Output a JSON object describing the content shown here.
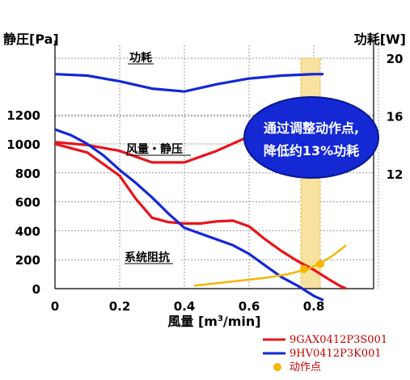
{
  "chart_data": {
    "type": "line",
    "xlabel_prefix": "風量 [m",
    "xlabel_sup": "3",
    "xlabel_suffix": "/min]",
    "ylabel_left": "静圧[Pa]",
    "ylabel_right": "功耗[W]",
    "xlim": [
      0,
      1.0
    ],
    "ylim_left": [
      0,
      1600
    ],
    "ylim_right": [
      0,
      20
    ],
    "x_ticks": [
      "0",
      "0.2",
      "0.4",
      "0.6",
      "0.8"
    ],
    "x_tick_values": [
      0,
      0.2,
      0.4,
      0.6,
      0.8
    ],
    "y_left_ticks": [
      "0",
      "200",
      "400",
      "600",
      "800",
      "1000",
      "1200"
    ],
    "y_left_tick_values": [
      0,
      200,
      400,
      600,
      800,
      1000,
      1200
    ],
    "y_right_ticks": [
      "12",
      "16",
      "20"
    ],
    "y_right_tick_values": [
      12,
      16,
      20
    ],
    "grid": true,
    "operating_band": [
      0.76,
      0.82
    ],
    "series": [
      {
        "name": "9GAX0412P3S001",
        "color": "#e8141b",
        "pressure": {
          "x": [
            0,
            0.1,
            0.2,
            0.25,
            0.3,
            0.35,
            0.4,
            0.45,
            0.5,
            0.55,
            0.6,
            0.65,
            0.7,
            0.75,
            0.8,
            0.85,
            0.88,
            0.9
          ],
          "y": [
            1000,
            940,
            780,
            620,
            490,
            460,
            450,
            450,
            465,
            470,
            430,
            340,
            260,
            190,
            130,
            60,
            20,
            0
          ]
        },
        "power": {
          "x": [
            0,
            0.1,
            0.2,
            0.3,
            0.4,
            0.5,
            0.6,
            0.7,
            0.8,
            0.9
          ],
          "y": [
            14.2,
            14.0,
            13.6,
            12.8,
            12.8,
            13.6,
            14.6,
            14.9,
            14.9,
            14.6
          ]
        }
      },
      {
        "name": "9HV0412P3K001",
        "color": "#1428d4",
        "pressure": {
          "x": [
            0,
            0.05,
            0.1,
            0.15,
            0.2,
            0.25,
            0.3,
            0.35,
            0.4,
            0.45,
            0.5,
            0.55,
            0.6,
            0.65,
            0.7,
            0.75,
            0.8,
            0.83
          ],
          "y": [
            1100,
            1060,
            1000,
            920,
            820,
            730,
            630,
            520,
            420,
            380,
            340,
            300,
            240,
            160,
            80,
            20,
            -50,
            -80
          ]
        },
        "power": {
          "x": [
            0,
            0.1,
            0.2,
            0.3,
            0.4,
            0.5,
            0.6,
            0.7,
            0.8,
            0.83
          ],
          "y": [
            18.9,
            18.8,
            18.4,
            17.9,
            17.7,
            18.2,
            18.6,
            18.8,
            18.9,
            18.9
          ]
        }
      }
    ],
    "impedance_curve": {
      "name": "系统阻抗",
      "color": "#f3b700",
      "x": [
        0.43,
        0.55,
        0.65,
        0.72,
        0.78,
        0.82,
        0.86,
        0.9
      ],
      "y": [
        20,
        50,
        75,
        100,
        135,
        175,
        230,
        300
      ]
    },
    "operating_points": {
      "name": "动作点",
      "color": "#f3b700",
      "points": [
        {
          "x": 0.77,
          "y": 135
        },
        {
          "x": 0.82,
          "y": 170
        }
      ]
    },
    "annotations": {
      "power_label": "功耗",
      "pressure_label": "风量・静压",
      "impedance_label": "系统阻抗"
    },
    "callout": {
      "line1": "通过调整动作点,",
      "line2": "降低约13%功耗",
      "fill": "#1428d4"
    },
    "legend": [
      {
        "name": "9GAX0412P3S001",
        "color": "#e8141b",
        "kind": "line"
      },
      {
        "name": "9HV0412P3K001",
        "color": "#1428d4",
        "kind": "line"
      },
      {
        "name": "动作点",
        "color": "#f3b700",
        "kind": "dot"
      }
    ]
  }
}
